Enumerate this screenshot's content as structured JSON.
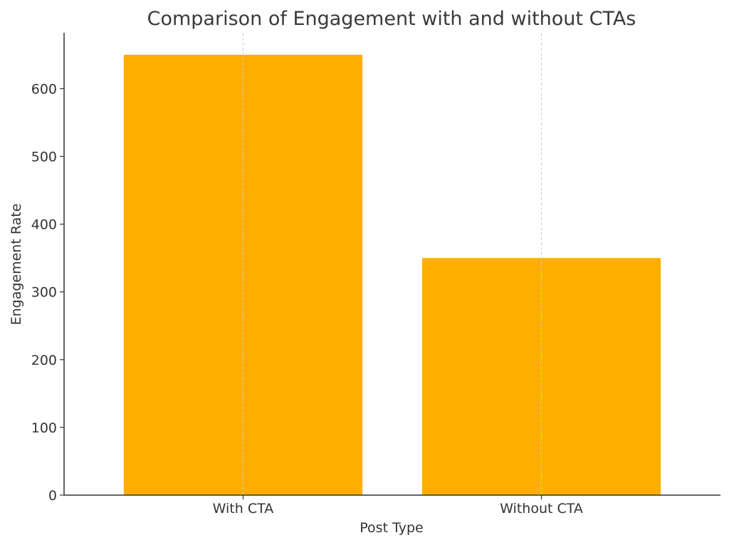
{
  "chart_data": {
    "type": "bar",
    "title": "Comparison of Engagement with and without CTAs",
    "xlabel": "Post Type",
    "ylabel": "Engagement Rate",
    "categories": [
      "With CTA",
      "Without CTA"
    ],
    "values": [
      650,
      350
    ],
    "ylim": [
      0,
      682.5
    ],
    "yticks": [
      0,
      100,
      200,
      300,
      400,
      500,
      600
    ],
    "grid": "x-dashed",
    "bar_color": "#FFAE00",
    "axis_color": "#333333",
    "grid_color": "#cccccc"
  }
}
